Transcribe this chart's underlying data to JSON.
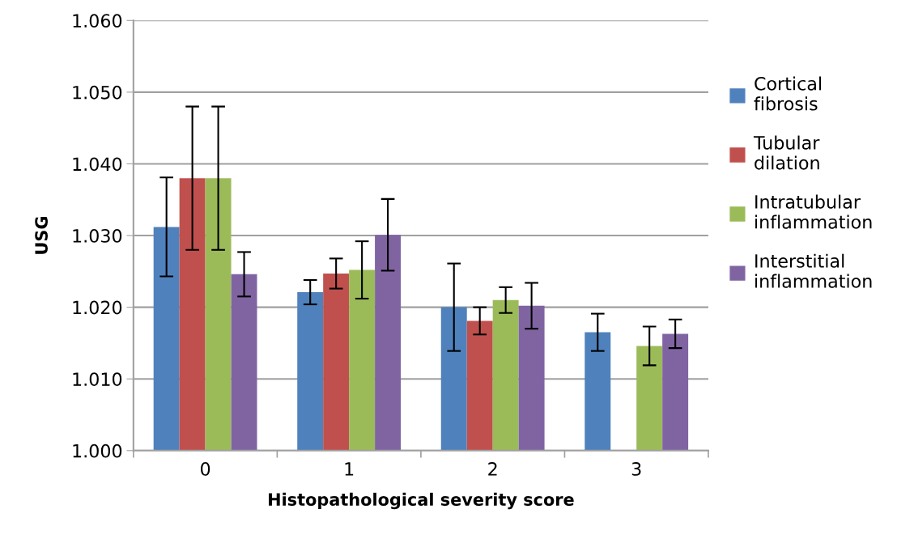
{
  "chart_data": {
    "type": "bar",
    "xlabel": "Histopathological severity score",
    "ylabel": "USG",
    "categories": [
      "0",
      "1",
      "2",
      "3"
    ],
    "series": [
      {
        "name": "Cortical\nfibrosis",
        "color": "#4f81bd",
        "values": [
          1.0312,
          1.0221,
          1.02,
          1.0165
        ],
        "errors": [
          0.0069,
          0.0017,
          0.0061,
          0.0026
        ]
      },
      {
        "name": "Tubular\ndilation",
        "color": "#c0504d",
        "values": [
          1.038,
          1.0247,
          1.0181,
          null
        ],
        "errors": [
          0.01,
          0.0021,
          0.0019,
          null
        ]
      },
      {
        "name": "Intratubular\ninflammation",
        "color": "#9bbb59",
        "values": [
          1.038,
          1.0252,
          1.021,
          1.0146
        ],
        "errors": [
          0.01,
          0.004,
          0.0018,
          0.0027
        ]
      },
      {
        "name": "Interstitial\ninflammation",
        "color": "#8064a2",
        "values": [
          1.0246,
          1.0301,
          1.0202,
          1.0163
        ],
        "errors": [
          0.0031,
          0.005,
          0.0032,
          0.002
        ]
      }
    ],
    "ylim": [
      1.0,
      1.06
    ],
    "yticks": [
      {
        "value": 1.0,
        "label": "1.000"
      },
      {
        "value": 1.01,
        "label": "1.010"
      },
      {
        "value": 1.02,
        "label": "1.020"
      },
      {
        "value": 1.03,
        "label": "1.030"
      },
      {
        "value": 1.04,
        "label": "1.040"
      },
      {
        "value": 1.05,
        "label": "1.050"
      },
      {
        "value": 1.06,
        "label": "1.060"
      }
    ],
    "grid": "y",
    "legend": "right"
  }
}
